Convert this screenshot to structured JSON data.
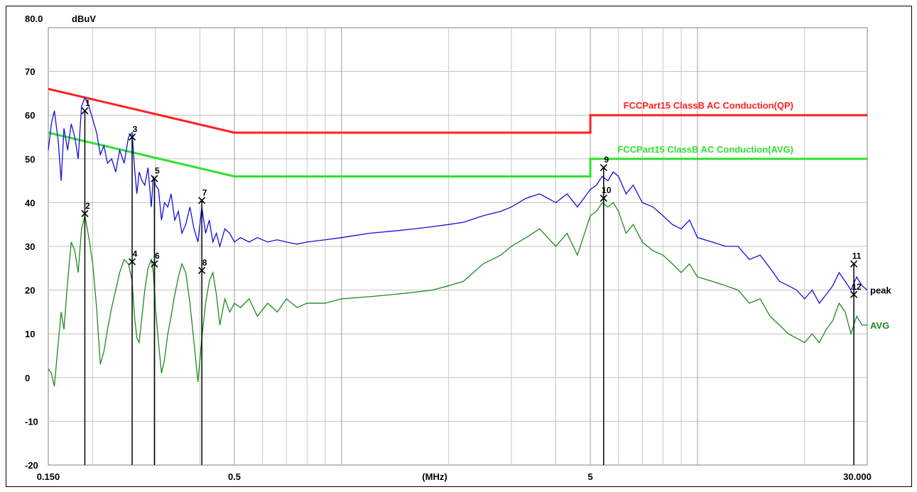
{
  "header": {
    "ytop_label": "80.0",
    "unit_label": "dBuV"
  },
  "chart_data": {
    "type": "line",
    "title": "",
    "xlabel": "(MHz)",
    "ylabel": "dBuV",
    "xscale": "log",
    "xlim": [
      0.15,
      30
    ],
    "ylim": [
      -20,
      80
    ],
    "x_tick_labels": [
      {
        "value": 0.15,
        "label": "0.150"
      },
      {
        "value": 0.5,
        "label": "0.5"
      },
      {
        "value": 5,
        "label": "5"
      },
      {
        "value": 30,
        "label": "30.000"
      }
    ],
    "y_tick_labels": [
      {
        "value": 70,
        "label": "70"
      },
      {
        "value": 60,
        "label": "60"
      },
      {
        "value": 50,
        "label": "50"
      },
      {
        "value": 40,
        "label": "40"
      },
      {
        "value": 30,
        "label": "30"
      },
      {
        "value": 20,
        "label": "20"
      },
      {
        "value": 10,
        "label": "10"
      },
      {
        "value": 0,
        "label": "0"
      },
      {
        "value": -10,
        "label": "-10"
      },
      {
        "value": -20,
        "label": "-20"
      }
    ],
    "grid": true,
    "limits": [
      {
        "name": "FCCPart15 ClassB AC Conduction(QP)",
        "color": "#ff2020",
        "points": [
          [
            0.15,
            66.0
          ],
          [
            0.5,
            56.0
          ],
          [
            5.0,
            56.0
          ],
          [
            5.0,
            60.0
          ],
          [
            30.0,
            60.0
          ]
        ]
      },
      {
        "name": "FCCPart15 ClassB AC Conduction(AVG)",
        "color": "#2fe02f",
        "points": [
          [
            0.15,
            56.0
          ],
          [
            0.5,
            46.0
          ],
          [
            5.0,
            46.0
          ],
          [
            5.0,
            50.0
          ],
          [
            30.0,
            50.0
          ]
        ]
      }
    ],
    "series": [
      {
        "name": "peak",
        "color": "#1010dd",
        "points": [
          [
            0.15,
            52
          ],
          [
            0.153,
            58
          ],
          [
            0.156,
            61
          ],
          [
            0.16,
            54
          ],
          [
            0.163,
            45
          ],
          [
            0.166,
            57
          ],
          [
            0.17,
            52
          ],
          [
            0.174,
            58
          ],
          [
            0.178,
            55
          ],
          [
            0.182,
            50
          ],
          [
            0.186,
            62
          ],
          [
            0.19,
            64
          ],
          [
            0.195,
            62
          ],
          [
            0.2,
            59
          ],
          [
            0.205,
            56
          ],
          [
            0.21,
            51
          ],
          [
            0.215,
            53
          ],
          [
            0.22,
            49
          ],
          [
            0.226,
            50
          ],
          [
            0.232,
            47
          ],
          [
            0.238,
            52
          ],
          [
            0.245,
            49
          ],
          [
            0.252,
            55
          ],
          [
            0.258,
            56
          ],
          [
            0.262,
            48
          ],
          [
            0.266,
            42
          ],
          [
            0.27,
            47
          ],
          [
            0.275,
            45
          ],
          [
            0.28,
            44
          ],
          [
            0.286,
            48
          ],
          [
            0.292,
            39
          ],
          [
            0.296,
            46
          ],
          [
            0.3,
            44
          ],
          [
            0.306,
            43
          ],
          [
            0.312,
            36
          ],
          [
            0.318,
            40
          ],
          [
            0.325,
            39
          ],
          [
            0.332,
            42
          ],
          [
            0.34,
            36
          ],
          [
            0.348,
            38
          ],
          [
            0.356,
            33
          ],
          [
            0.365,
            35
          ],
          [
            0.375,
            39
          ],
          [
            0.385,
            34
          ],
          [
            0.395,
            31
          ],
          [
            0.405,
            39
          ],
          [
            0.415,
            33
          ],
          [
            0.425,
            36
          ],
          [
            0.435,
            31
          ],
          [
            0.445,
            33
          ],
          [
            0.455,
            30
          ],
          [
            0.47,
            34
          ],
          [
            0.485,
            33
          ],
          [
            0.5,
            31
          ],
          [
            0.52,
            32
          ],
          [
            0.55,
            31
          ],
          [
            0.58,
            32
          ],
          [
            0.62,
            31
          ],
          [
            0.66,
            31.5
          ],
          [
            0.7,
            31
          ],
          [
            0.75,
            30.5
          ],
          [
            0.8,
            31
          ],
          [
            0.9,
            31.5
          ],
          [
            1.0,
            32
          ],
          [
            1.2,
            33
          ],
          [
            1.4,
            33.5
          ],
          [
            1.6,
            34
          ],
          [
            1.8,
            34.5
          ],
          [
            2.0,
            35
          ],
          [
            2.2,
            35.5
          ],
          [
            2.5,
            37
          ],
          [
            2.8,
            38
          ],
          [
            3.0,
            39
          ],
          [
            3.3,
            41
          ],
          [
            3.6,
            42
          ],
          [
            4.0,
            40
          ],
          [
            4.3,
            42
          ],
          [
            4.6,
            39
          ],
          [
            5.0,
            43
          ],
          [
            5.2,
            44
          ],
          [
            5.4,
            46
          ],
          [
            5.6,
            45
          ],
          [
            5.8,
            47
          ],
          [
            6.0,
            46
          ],
          [
            6.3,
            42
          ],
          [
            6.6,
            44
          ],
          [
            7.0,
            40
          ],
          [
            7.5,
            39
          ],
          [
            8.0,
            37
          ],
          [
            8.5,
            35
          ],
          [
            9.0,
            34
          ],
          [
            9.5,
            36
          ],
          [
            10.0,
            32
          ],
          [
            11.0,
            31
          ],
          [
            12.0,
            30
          ],
          [
            13.0,
            30
          ],
          [
            14.0,
            27
          ],
          [
            15.0,
            28
          ],
          [
            16.0,
            25
          ],
          [
            17.0,
            22
          ],
          [
            18.0,
            21
          ],
          [
            19.0,
            20
          ],
          [
            20.0,
            18
          ],
          [
            21.0,
            20
          ],
          [
            22.0,
            17
          ],
          [
            23.0,
            19
          ],
          [
            24.0,
            21
          ],
          [
            25.0,
            24
          ],
          [
            26.0,
            22
          ],
          [
            27.0,
            20
          ],
          [
            28.0,
            23
          ],
          [
            29.0,
            21
          ],
          [
            30.0,
            20
          ]
        ]
      },
      {
        "name": "AVG",
        "color": "#1f8a1f",
        "points": [
          [
            0.15,
            2
          ],
          [
            0.153,
            1
          ],
          [
            0.156,
            -2
          ],
          [
            0.16,
            8
          ],
          [
            0.163,
            15
          ],
          [
            0.166,
            11
          ],
          [
            0.17,
            22
          ],
          [
            0.174,
            31
          ],
          [
            0.178,
            29
          ],
          [
            0.182,
            24
          ],
          [
            0.186,
            34
          ],
          [
            0.19,
            37
          ],
          [
            0.195,
            32
          ],
          [
            0.2,
            26
          ],
          [
            0.205,
            16
          ],
          [
            0.21,
            3
          ],
          [
            0.215,
            6
          ],
          [
            0.22,
            11
          ],
          [
            0.226,
            16
          ],
          [
            0.232,
            20
          ],
          [
            0.238,
            24
          ],
          [
            0.245,
            27
          ],
          [
            0.252,
            26
          ],
          [
            0.258,
            22
          ],
          [
            0.262,
            14
          ],
          [
            0.266,
            9
          ],
          [
            0.27,
            8
          ],
          [
            0.275,
            14
          ],
          [
            0.28,
            20
          ],
          [
            0.286,
            25
          ],
          [
            0.292,
            27
          ],
          [
            0.296,
            24
          ],
          [
            0.3,
            16
          ],
          [
            0.306,
            8
          ],
          [
            0.312,
            1
          ],
          [
            0.318,
            4
          ],
          [
            0.325,
            10
          ],
          [
            0.332,
            14
          ],
          [
            0.34,
            19
          ],
          [
            0.348,
            23
          ],
          [
            0.356,
            26
          ],
          [
            0.365,
            24
          ],
          [
            0.375,
            17
          ],
          [
            0.385,
            8
          ],
          [
            0.395,
            -1
          ],
          [
            0.405,
            9
          ],
          [
            0.415,
            17
          ],
          [
            0.425,
            22
          ],
          [
            0.435,
            24
          ],
          [
            0.445,
            19
          ],
          [
            0.455,
            12
          ],
          [
            0.47,
            18
          ],
          [
            0.485,
            15
          ],
          [
            0.5,
            17
          ],
          [
            0.52,
            16
          ],
          [
            0.55,
            18
          ],
          [
            0.58,
            14
          ],
          [
            0.62,
            17
          ],
          [
            0.66,
            15
          ],
          [
            0.7,
            18
          ],
          [
            0.75,
            16
          ],
          [
            0.8,
            17
          ],
          [
            0.9,
            17
          ],
          [
            1.0,
            18
          ],
          [
            1.2,
            18.5
          ],
          [
            1.4,
            19
          ],
          [
            1.6,
            19.5
          ],
          [
            1.8,
            20
          ],
          [
            2.0,
            21
          ],
          [
            2.2,
            22
          ],
          [
            2.5,
            26
          ],
          [
            2.8,
            28
          ],
          [
            3.0,
            30
          ],
          [
            3.3,
            32
          ],
          [
            3.6,
            34
          ],
          [
            4.0,
            30
          ],
          [
            4.3,
            33
          ],
          [
            4.6,
            28
          ],
          [
            5.0,
            37
          ],
          [
            5.2,
            38
          ],
          [
            5.4,
            40
          ],
          [
            5.6,
            39
          ],
          [
            5.8,
            40
          ],
          [
            6.0,
            38
          ],
          [
            6.3,
            33
          ],
          [
            6.6,
            35
          ],
          [
            7.0,
            31
          ],
          [
            7.5,
            29
          ],
          [
            8.0,
            28
          ],
          [
            8.5,
            26
          ],
          [
            9.0,
            24
          ],
          [
            9.5,
            26
          ],
          [
            10.0,
            23
          ],
          [
            11.0,
            22
          ],
          [
            12.0,
            21
          ],
          [
            13.0,
            20
          ],
          [
            14.0,
            17
          ],
          [
            15.0,
            18
          ],
          [
            16.0,
            14
          ],
          [
            17.0,
            12
          ],
          [
            18.0,
            10
          ],
          [
            19.0,
            9
          ],
          [
            20.0,
            8
          ],
          [
            21.0,
            10
          ],
          [
            22.0,
            8
          ],
          [
            23.0,
            11
          ],
          [
            24.0,
            13
          ],
          [
            25.0,
            17
          ],
          [
            26.0,
            15
          ],
          [
            27.0,
            10
          ],
          [
            28.0,
            14
          ],
          [
            29.0,
            12
          ],
          [
            30.0,
            12
          ]
        ]
      }
    ],
    "markers": [
      {
        "label": "1",
        "x": 0.19,
        "y": 61.0
      },
      {
        "label": "2",
        "x": 0.19,
        "y": 37.5
      },
      {
        "label": "3",
        "x": 0.258,
        "y": 55.0
      },
      {
        "label": "4",
        "x": 0.258,
        "y": 26.5
      },
      {
        "label": "5",
        "x": 0.298,
        "y": 45.5
      },
      {
        "label": "6",
        "x": 0.298,
        "y": 26.0
      },
      {
        "label": "7",
        "x": 0.405,
        "y": 40.5
      },
      {
        "label": "8",
        "x": 0.405,
        "y": 24.5
      },
      {
        "label": "9",
        "x": 5.45,
        "y": 48.0
      },
      {
        "label": "10",
        "x": 5.45,
        "y": 41.0
      },
      {
        "label": "11",
        "x": 27.5,
        "y": 26.0
      },
      {
        "label": "12",
        "x": 27.5,
        "y": 19.0
      }
    ]
  }
}
